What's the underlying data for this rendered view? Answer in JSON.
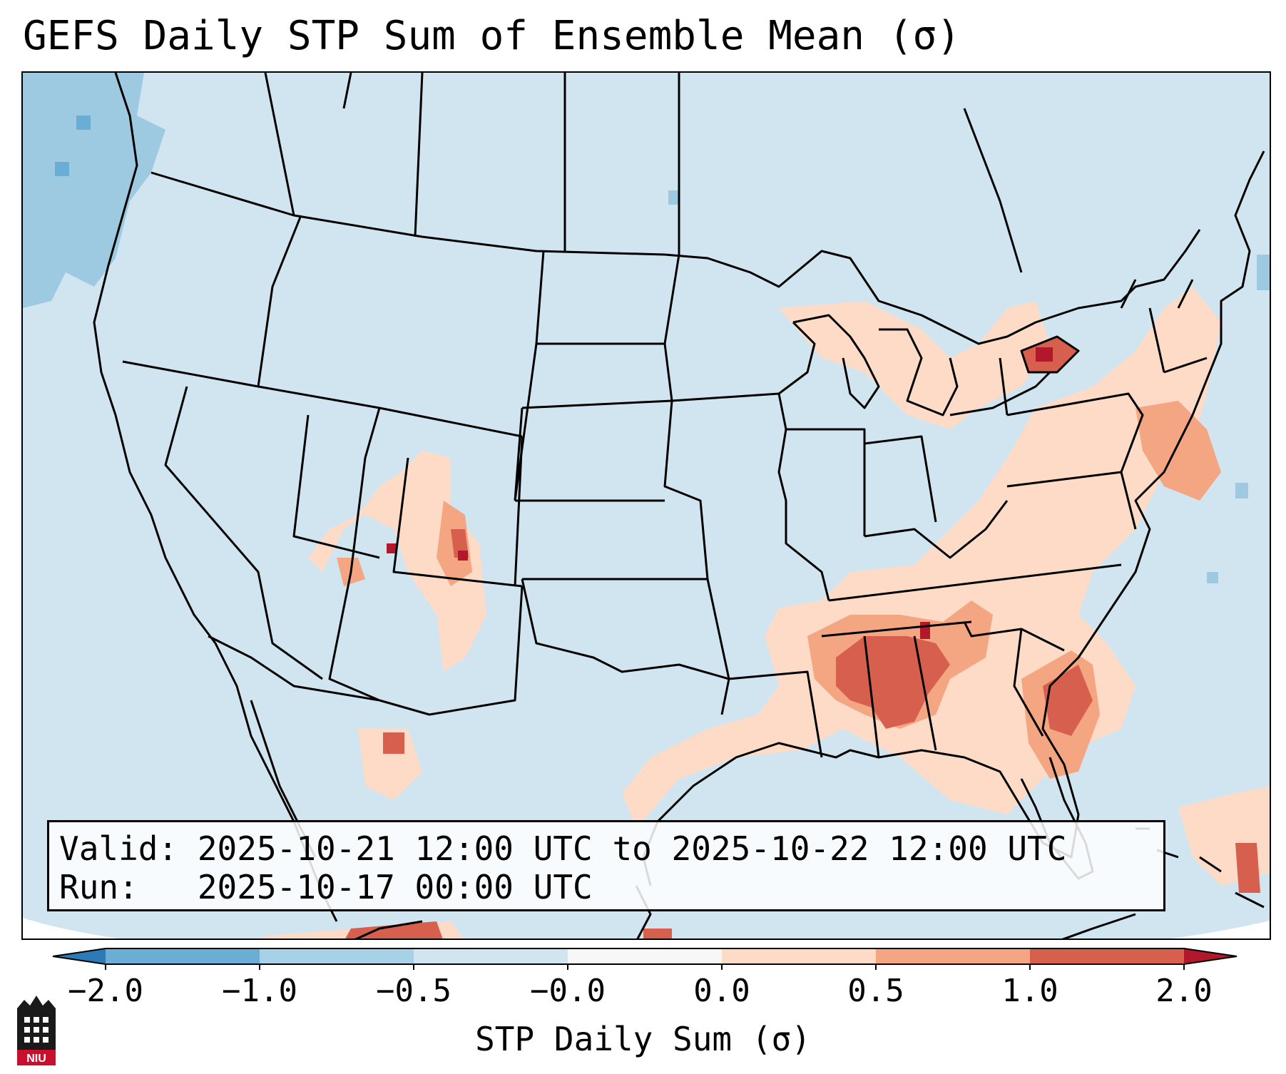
{
  "title": "GEFS Daily STP Sum of Ensemble Mean (σ)",
  "info": {
    "valid_line": "Valid: 2025-10-21 12:00 UTC to 2025-10-22 12:00 UTC",
    "run_line": "Run:   2025-10-17 00:00 UTC"
  },
  "colorbar": {
    "label": "STP Daily Sum (σ)",
    "ticks": [
      "−2.0",
      "−1.0",
      "−0.5",
      "−0.0",
      "0.0",
      "0.5",
      "1.0",
      "2.0"
    ],
    "colors": [
      "#2c7bb6",
      "#6aaed6",
      "#a6d1e6",
      "#d1e5f0",
      "#f7f7f7",
      "#fddbc7",
      "#f4a582",
      "#d6604d",
      "#b2182b"
    ],
    "extend": "both"
  },
  "map": {
    "background_color": "#d1e5f0",
    "outside_color": "#ffffff",
    "positive_regions": [
      {
        "name": "southeast",
        "level": 0.5
      },
      {
        "name": "deep-south-core",
        "level": 1.0
      },
      {
        "name": "east-coast",
        "level": 0.5
      },
      {
        "name": "lake-ontario",
        "level": 1.5
      },
      {
        "name": "colorado-nm",
        "level": 0.5
      },
      {
        "name": "gulf-coast",
        "level": 0.3
      },
      {
        "name": "atlantic",
        "level": 0.3
      },
      {
        "name": "caribbean",
        "level": 0.5
      }
    ],
    "negative_regions": [
      {
        "name": "pacific-northwest",
        "level": -0.5
      }
    ]
  },
  "logo": {
    "text": "NIU"
  }
}
